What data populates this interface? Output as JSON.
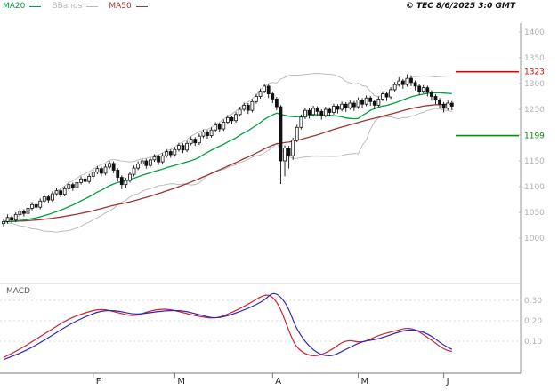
{
  "header": {
    "legend": [
      {
        "label": "MA20",
        "color": "#00a040"
      },
      {
        "label": "BBands",
        "color": "#b8b8b8"
      },
      {
        "label": "MA50",
        "color": "#a03333"
      }
    ],
    "copyright": "© TEC 8/6/2025 3:0 GMT"
  },
  "chart_data": [
    {
      "type": "candlestick",
      "title": "",
      "x_tick_labels": [
        "F",
        "M",
        "A",
        "M",
        "J"
      ],
      "month_start_indices": [
        22,
        42,
        66,
        87,
        108
      ],
      "y_ticks": [
        1400,
        1350,
        1300,
        1250,
        1200,
        1150,
        1100,
        1050,
        1000
      ],
      "ylim": [
        990,
        1415
      ],
      "grid": false,
      "levels": [
        {
          "name": "resistance",
          "value": 1323,
          "label": "1323",
          "color": "#dd0000"
        },
        {
          "name": "support",
          "value": 1199,
          "label": "1199",
          "color": "#008f00"
        }
      ],
      "overlays": [
        {
          "name": "MA20",
          "window": 20,
          "color": "#00a040"
        },
        {
          "name": "MA50",
          "window": 50,
          "color": "#a03333"
        },
        {
          "name": "BBands",
          "window": 20,
          "mult": 2,
          "color": "#bdbdbd"
        }
      ],
      "candles_ohlc": [
        [
          1028,
          1038,
          1022,
          1032
        ],
        [
          1032,
          1046,
          1028,
          1040
        ],
        [
          1040,
          1044,
          1029,
          1035
        ],
        [
          1035,
          1050,
          1031,
          1046
        ],
        [
          1046,
          1058,
          1042,
          1052
        ],
        [
          1052,
          1056,
          1042,
          1048
        ],
        [
          1048,
          1063,
          1044,
          1058
        ],
        [
          1058,
          1070,
          1054,
          1065
        ],
        [
          1065,
          1069,
          1053,
          1060
        ],
        [
          1060,
          1077,
          1056,
          1072
        ],
        [
          1072,
          1085,
          1068,
          1080
        ],
        [
          1080,
          1084,
          1068,
          1074
        ],
        [
          1074,
          1091,
          1070,
          1086
        ],
        [
          1086,
          1097,
          1082,
          1092
        ],
        [
          1092,
          1096,
          1079,
          1085
        ],
        [
          1085,
          1101,
          1081,
          1096
        ],
        [
          1096,
          1109,
          1092,
          1104
        ],
        [
          1104,
          1108,
          1092,
          1098
        ],
        [
          1098,
          1113,
          1094,
          1108
        ],
        [
          1108,
          1120,
          1104,
          1115
        ],
        [
          1115,
          1119,
          1104,
          1110
        ],
        [
          1110,
          1125,
          1106,
          1120
        ],
        [
          1120,
          1133,
          1116,
          1128
        ],
        [
          1128,
          1140,
          1124,
          1135
        ],
        [
          1135,
          1139,
          1120,
          1126
        ],
        [
          1126,
          1143,
          1122,
          1138
        ],
        [
          1138,
          1150,
          1134,
          1145
        ],
        [
          1145,
          1149,
          1126,
          1132
        ],
        [
          1132,
          1136,
          1110,
          1118
        ],
        [
          1118,
          1122,
          1095,
          1104
        ],
        [
          1104,
          1117,
          1098,
          1112
        ],
        [
          1112,
          1129,
          1108,
          1124
        ],
        [
          1124,
          1141,
          1120,
          1136
        ],
        [
          1136,
          1149,
          1132,
          1144
        ],
        [
          1144,
          1155,
          1140,
          1150
        ],
        [
          1150,
          1154,
          1135,
          1141
        ],
        [
          1141,
          1157,
          1137,
          1152
        ],
        [
          1152,
          1163,
          1148,
          1158
        ],
        [
          1158,
          1162,
          1142,
          1148
        ],
        [
          1148,
          1165,
          1144,
          1160
        ],
        [
          1160,
          1173,
          1156,
          1168
        ],
        [
          1168,
          1172,
          1156,
          1162
        ],
        [
          1162,
          1177,
          1158,
          1172
        ],
        [
          1172,
          1185,
          1168,
          1180
        ],
        [
          1180,
          1184,
          1165,
          1171
        ],
        [
          1171,
          1189,
          1167,
          1184
        ],
        [
          1184,
          1197,
          1180,
          1192
        ],
        [
          1192,
          1196,
          1179,
          1185
        ],
        [
          1185,
          1203,
          1181,
          1198
        ],
        [
          1198,
          1211,
          1194,
          1206
        ],
        [
          1206,
          1210,
          1193,
          1199
        ],
        [
          1199,
          1215,
          1195,
          1210
        ],
        [
          1210,
          1225,
          1206,
          1220
        ],
        [
          1220,
          1224,
          1206,
          1212
        ],
        [
          1212,
          1230,
          1208,
          1225
        ],
        [
          1225,
          1239,
          1221,
          1234
        ],
        [
          1234,
          1238,
          1221,
          1228
        ],
        [
          1228,
          1245,
          1224,
          1240
        ],
        [
          1240,
          1255,
          1236,
          1250
        ],
        [
          1250,
          1263,
          1246,
          1258
        ],
        [
          1258,
          1262,
          1241,
          1248
        ],
        [
          1248,
          1270,
          1244,
          1265
        ],
        [
          1265,
          1280,
          1261,
          1275
        ],
        [
          1275,
          1290,
          1271,
          1285
        ],
        [
          1285,
          1300,
          1281,
          1295
        ],
        [
          1295,
          1299,
          1272,
          1280
        ],
        [
          1280,
          1284,
          1262,
          1270
        ],
        [
          1270,
          1274,
          1248,
          1255
        ],
        [
          1255,
          1258,
          1105,
          1150
        ],
        [
          1150,
          1180,
          1120,
          1175
        ],
        [
          1175,
          1179,
          1135,
          1160
        ],
        [
          1160,
          1195,
          1152,
          1190
        ],
        [
          1190,
          1220,
          1186,
          1215
        ],
        [
          1215,
          1240,
          1211,
          1235
        ],
        [
          1235,
          1253,
          1231,
          1248
        ],
        [
          1248,
          1252,
          1232,
          1240
        ],
        [
          1240,
          1257,
          1236,
          1252
        ],
        [
          1252,
          1256,
          1238,
          1246
        ],
        [
          1246,
          1250,
          1230,
          1238
        ],
        [
          1238,
          1255,
          1234,
          1250
        ],
        [
          1250,
          1254,
          1236,
          1244
        ],
        [
          1244,
          1261,
          1240,
          1256
        ],
        [
          1256,
          1260,
          1242,
          1250
        ],
        [
          1250,
          1265,
          1246,
          1260
        ],
        [
          1260,
          1264,
          1245,
          1253
        ],
        [
          1253,
          1267,
          1249,
          1262
        ],
        [
          1262,
          1266,
          1247,
          1255
        ],
        [
          1255,
          1273,
          1251,
          1268
        ],
        [
          1268,
          1272,
          1252,
          1260
        ],
        [
          1260,
          1277,
          1256,
          1272
        ],
        [
          1272,
          1276,
          1257,
          1265
        ],
        [
          1265,
          1269,
          1250,
          1258
        ],
        [
          1258,
          1275,
          1254,
          1270
        ],
        [
          1270,
          1285,
          1266,
          1280
        ],
        [
          1280,
          1284,
          1266,
          1274
        ],
        [
          1274,
          1293,
          1270,
          1288
        ],
        [
          1288,
          1303,
          1284,
          1298
        ],
        [
          1298,
          1312,
          1294,
          1305
        ],
        [
          1305,
          1309,
          1290,
          1298
        ],
        [
          1298,
          1318,
          1294,
          1310
        ],
        [
          1310,
          1316,
          1295,
          1302
        ],
        [
          1302,
          1306,
          1287,
          1295
        ],
        [
          1295,
          1299,
          1278,
          1285
        ],
        [
          1285,
          1297,
          1281,
          1292
        ],
        [
          1292,
          1296,
          1275,
          1283
        ],
        [
          1283,
          1287,
          1267,
          1275
        ],
        [
          1275,
          1279,
          1260,
          1268
        ],
        [
          1268,
          1272,
          1252,
          1260
        ],
        [
          1260,
          1264,
          1244,
          1252
        ],
        [
          1252,
          1267,
          1248,
          1262
        ],
        [
          1262,
          1266,
          1248,
          1256
        ]
      ]
    },
    {
      "type": "line",
      "title": "MACD",
      "y_ticks": [
        0.3,
        0.2,
        0.1
      ],
      "ylim": [
        0,
        0.38
      ],
      "grid": true,
      "x_days": [
        0,
        4,
        8,
        12,
        16,
        20,
        24,
        28,
        32,
        36,
        40,
        44,
        48,
        52,
        56,
        60,
        64,
        66,
        68,
        70,
        72,
        76,
        80,
        84,
        88,
        92,
        96,
        100,
        104,
        108,
        110
      ],
      "series": [
        {
          "name": "MACD",
          "color": "#cc2233",
          "values": [
            0.02,
            0.06,
            0.11,
            0.16,
            0.21,
            0.24,
            0.26,
            0.24,
            0.22,
            0.25,
            0.26,
            0.24,
            0.22,
            0.21,
            0.24,
            0.28,
            0.33,
            0.32,
            0.26,
            0.15,
            0.06,
            0.02,
            0.05,
            0.11,
            0.09,
            0.13,
            0.15,
            0.17,
            0.12,
            0.06,
            0.05
          ]
        },
        {
          "name": "signal",
          "color": "#2a2ab8",
          "values": [
            0.01,
            0.04,
            0.08,
            0.13,
            0.18,
            0.22,
            0.25,
            0.25,
            0.23,
            0.24,
            0.25,
            0.25,
            0.23,
            0.21,
            0.23,
            0.26,
            0.3,
            0.34,
            0.32,
            0.26,
            0.15,
            0.05,
            0.02,
            0.06,
            0.1,
            0.11,
            0.14,
            0.16,
            0.14,
            0.08,
            0.06
          ]
        }
      ]
    }
  ]
}
